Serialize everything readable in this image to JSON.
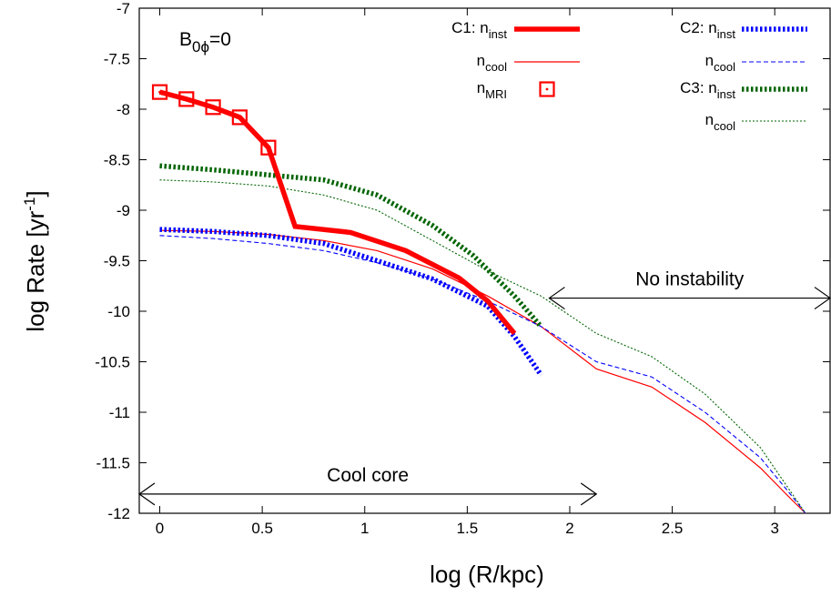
{
  "chart_data": {
    "type": "line",
    "title": "",
    "xlabel": "log (R/kpc)",
    "ylabel": "log Rate [yr-1]",
    "xlim": [
      -0.1,
      3.27
    ],
    "ylim": [
      -12,
      -7
    ],
    "xticks": [
      0,
      0.5,
      1,
      1.5,
      2,
      2.5,
      3
    ],
    "yticks": [
      -12,
      -11.5,
      -11,
      -10.5,
      -10,
      -9.5,
      -9,
      -8.5,
      -8,
      -7.5,
      -7
    ],
    "grid": false,
    "legend_position": "top-right",
    "panel_label": "B0ϕ=0",
    "series": [
      {
        "name": "C1: n_inst",
        "legend_label": "C1: n",
        "legend_sub": "inst",
        "color": "#ff0000",
        "style": "solid-thick",
        "x": [
          0,
          0.13,
          0.26,
          0.39,
          0.53,
          0.66,
          0.93,
          1.2,
          1.46,
          1.6,
          1.73
        ],
        "y": [
          -7.83,
          -7.9,
          -7.98,
          -8.08,
          -8.38,
          -9.16,
          -9.22,
          -9.4,
          -9.67,
          -9.9,
          -10.22
        ]
      },
      {
        "name": "C1: n_cool",
        "legend_label": "n",
        "legend_sub": "cool",
        "color": "#ff0000",
        "style": "solid-thin",
        "x": [
          0,
          0.26,
          0.53,
          0.8,
          1.06,
          1.33,
          1.6,
          1.86,
          2.13,
          2.4,
          2.66,
          2.93,
          3.08,
          3.15
        ],
        "y": [
          -9.2,
          -9.21,
          -9.24,
          -9.3,
          -9.4,
          -9.58,
          -9.85,
          -10.15,
          -10.57,
          -10.75,
          -11.1,
          -11.55,
          -11.86,
          -12.0
        ]
      },
      {
        "name": "C1: n_MRI",
        "legend_label": "n",
        "legend_sub": "MRI",
        "color": "#ff0000",
        "style": "square-marker",
        "x": [
          0,
          0.13,
          0.26,
          0.39,
          0.53
        ],
        "y": [
          -7.83,
          -7.9,
          -7.98,
          -8.08,
          -8.38
        ]
      },
      {
        "name": "C2: n_inst",
        "legend_label": "C2: n",
        "legend_sub": "inst",
        "color": "#0000ff",
        "style": "dotted-thick",
        "x": [
          0,
          0.26,
          0.53,
          0.8,
          1.06,
          1.33,
          1.6,
          1.73,
          1.86
        ],
        "y": [
          -9.19,
          -9.21,
          -9.25,
          -9.33,
          -9.5,
          -9.68,
          -9.95,
          -10.25,
          -10.63
        ]
      },
      {
        "name": "C2: n_cool",
        "legend_label": "n",
        "legend_sub": "cool",
        "color": "#0000ff",
        "style": "dashed-thin",
        "x": [
          0,
          0.26,
          0.53,
          0.8,
          1.06,
          1.33,
          1.6,
          1.86,
          2.13,
          2.4,
          2.66,
          2.93,
          3.08,
          3.15
        ],
        "y": [
          -9.25,
          -9.28,
          -9.33,
          -9.4,
          -9.52,
          -9.68,
          -9.9,
          -10.15,
          -10.5,
          -10.65,
          -11.0,
          -11.45,
          -11.82,
          -12.0
        ]
      },
      {
        "name": "C3: n_inst",
        "legend_label": "C3: n",
        "legend_sub": "inst",
        "color": "#006400",
        "style": "dotted-thick",
        "x": [
          0,
          0.26,
          0.53,
          0.8,
          1.06,
          1.33,
          1.53,
          1.73,
          1.86
        ],
        "y": [
          -8.56,
          -8.6,
          -8.65,
          -8.7,
          -8.85,
          -9.15,
          -9.45,
          -9.85,
          -10.15
        ]
      },
      {
        "name": "C3: n_cool",
        "legend_label": "n",
        "legend_sub": "cool",
        "color": "#006400",
        "style": "dotted-thin",
        "x": [
          0,
          0.26,
          0.53,
          0.8,
          1.06,
          1.33,
          1.6,
          1.86,
          2.13,
          2.4,
          2.66,
          2.93,
          3.15
        ],
        "y": [
          -8.7,
          -8.72,
          -8.76,
          -8.85,
          -9.0,
          -9.3,
          -9.6,
          -9.85,
          -10.22,
          -10.45,
          -10.82,
          -11.35,
          -12.0
        ]
      }
    ],
    "annotations": [
      {
        "name": "no-instability",
        "text": "No instability",
        "x_from": 1.9,
        "x_to": 3.27,
        "y": -9.87
      },
      {
        "name": "cool-core",
        "text": "Cool core",
        "x_from": -0.1,
        "x_to": 2.13,
        "y": -11.81
      }
    ]
  }
}
